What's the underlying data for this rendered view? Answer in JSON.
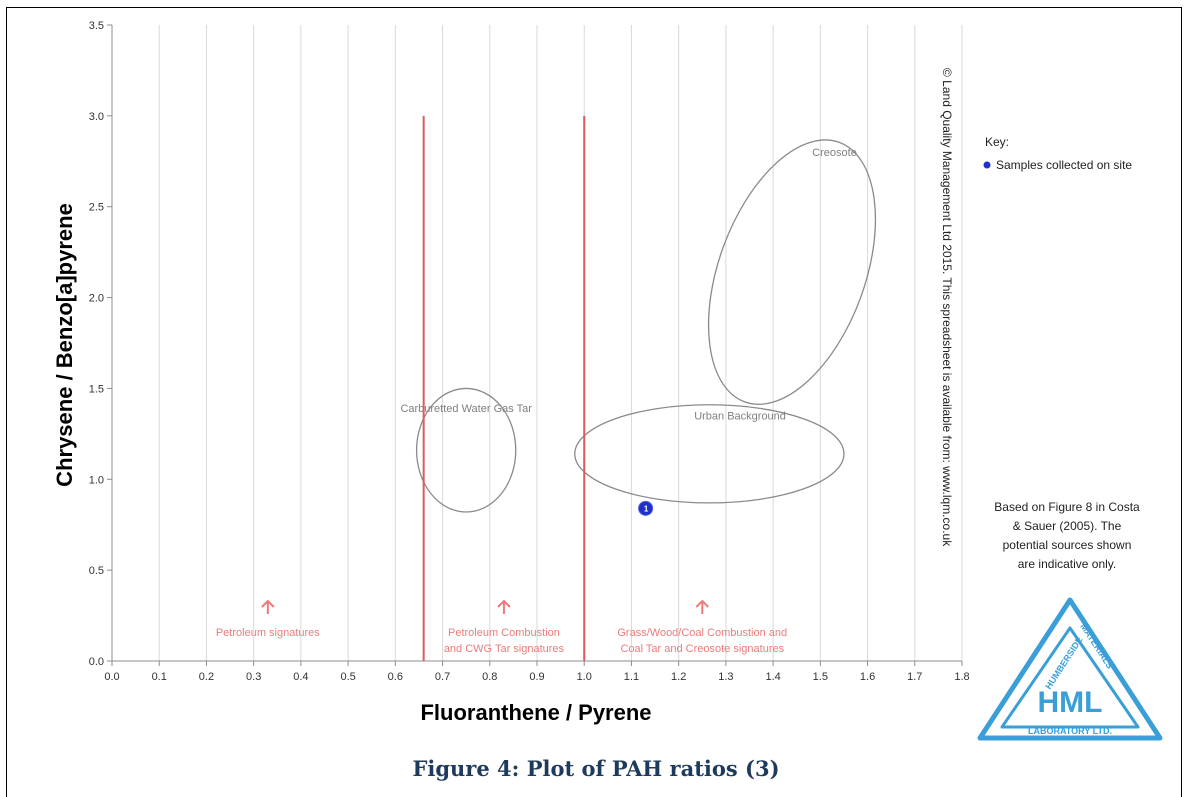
{
  "chart_data": {
    "type": "scatter",
    "xlabel": "Fluoranthene / Pyrene",
    "ylabel": "Chrysene / Benzo[a]pyrene",
    "xlim": [
      0.0,
      1.8
    ],
    "ylim": [
      0.0,
      3.5
    ],
    "x_ticks": [
      "0.0",
      "0.1",
      "0.2",
      "0.3",
      "0.4",
      "0.5",
      "0.6",
      "0.7",
      "0.8",
      "0.9",
      "1.0",
      "1.1",
      "1.2",
      "1.3",
      "1.4",
      "1.5",
      "1.6",
      "1.7",
      "1.8"
    ],
    "y_ticks": [
      "0.0",
      "0.5",
      "1.0",
      "1.5",
      "2.0",
      "2.5",
      "3.0",
      "3.5"
    ],
    "grid": "vertical",
    "series": [
      {
        "name": "Samples collected on site",
        "color": "#1f30c9",
        "points": [
          {
            "x": 1.13,
            "y": 0.84,
            "label": "1"
          }
        ]
      }
    ],
    "reference_lines": [
      {
        "x": 0.66,
        "y_range": [
          0.0,
          3.0
        ],
        "color": "#e05a5a"
      },
      {
        "x": 1.0,
        "y_range": [
          0.0,
          3.0
        ],
        "color": "#e05a5a"
      }
    ],
    "regions": [
      {
        "label": "Carburetted Water Gas Tar",
        "cx": 0.75,
        "cy": 1.16,
        "rx": 0.105,
        "ry": 0.34,
        "rotation": 0
      },
      {
        "label": "Urban Background",
        "cx": 1.265,
        "cy": 1.14,
        "rx": 0.285,
        "ry": 0.27,
        "rotation": 0
      },
      {
        "label": "Creosote",
        "cx": 1.44,
        "cy": 2.14,
        "rx": 0.155,
        "ry": 0.76,
        "rotation": 20
      }
    ],
    "signature_annotations": [
      {
        "lines": [
          "Petroleum signatures"
        ],
        "x": 0.33
      },
      {
        "lines": [
          "Petroleum Combustion",
          "and CWG Tar signatures"
        ],
        "x": 0.83
      },
      {
        "lines": [
          "Grass/Wood/Coal Combustion and",
          "Coal Tar and Creosote signatures"
        ],
        "x": 1.25
      }
    ],
    "legend": {
      "title": "Key:",
      "entry": "Samples collected on site",
      "position": "right"
    }
  },
  "copyright": "© Land Quality Management Ltd 2015.  This spreadsheet is available from: www.lqm.co.uk",
  "source_note": [
    "Based on Figure 8 in Costa",
    "& Sauer (2005).  The",
    "potential sources shown",
    "are indicative only."
  ],
  "logo": {
    "top_text": "HUMBERSIDE",
    "right_text": "MATERIALS",
    "bottom_text": "LABORATORY LTD.",
    "center_text": "HML",
    "color": "#3a9fd8"
  },
  "caption": "Figure 4: Plot of PAH ratios (3)"
}
